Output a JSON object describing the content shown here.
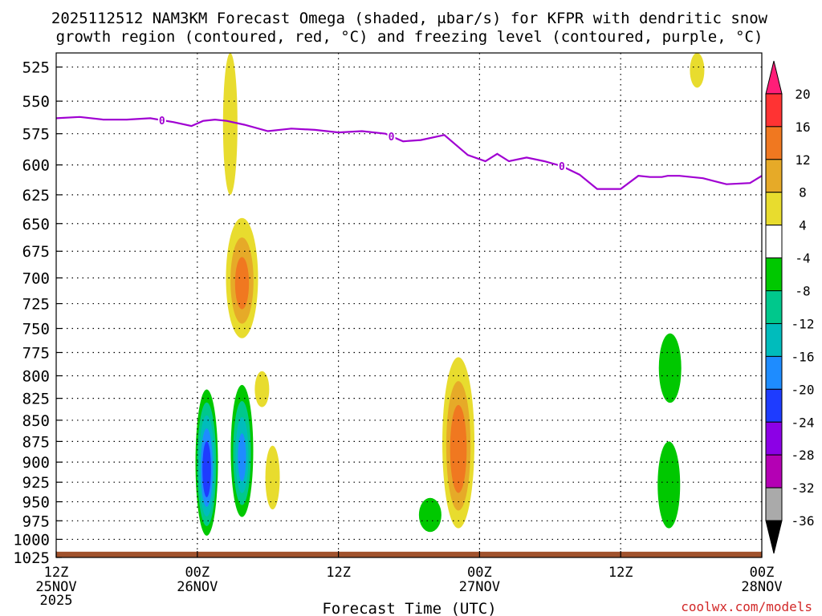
{
  "chart_data": {
    "type": "heatmap",
    "title_line1": "2025112512 NAM3KM Forecast Omega (shaded, μbar/s) for KFPR with dendritic snow",
    "title_line2": "growth region (contoured, red, °C) and freezing level (contoured, purple, °C)",
    "xlabel": "Forecast Time (UTC)",
    "watermark": "coolwx.com/models",
    "x_unit": "forecast hours from 2025112512",
    "x_range": [
      0,
      60
    ],
    "y_unit": "hPa",
    "y_range": [
      515,
      1025
    ],
    "y_ticks": [
      525,
      550,
      575,
      600,
      625,
      650,
      675,
      700,
      725,
      750,
      775,
      800,
      825,
      850,
      875,
      900,
      925,
      950,
      975,
      1000,
      1025
    ],
    "x_ticks": [
      {
        "hour": 0,
        "time": "12Z",
        "date": "25NOV",
        "year": "2025"
      },
      {
        "hour": 12,
        "time": "00Z",
        "date": "26NOV",
        "year": ""
      },
      {
        "hour": 24,
        "time": "12Z",
        "date": "",
        "year": ""
      },
      {
        "hour": 36,
        "time": "00Z",
        "date": "27NOV",
        "year": ""
      },
      {
        "hour": 48,
        "time": "12Z",
        "date": "",
        "year": ""
      },
      {
        "hour": 60,
        "time": "00Z",
        "date": "28NOV",
        "year": ""
      }
    ],
    "colorbar": {
      "levels": [
        "20",
        "16",
        "12",
        "8",
        "4",
        "-4",
        "-8",
        "-12",
        "-16",
        "-20",
        "-24",
        "-28",
        "-32",
        "-36"
      ],
      "colors": [
        "#ff1e78",
        "#ff3333",
        "#f07820",
        "#e6aa28",
        "#e8dc2e",
        "#ffffff",
        "#00c800",
        "#00c88c",
        "#00bcbc",
        "#1e8cff",
        "#1e3cff",
        "#8c00e6",
        "#b400b4",
        "#aaaaaa",
        "#000000"
      ]
    },
    "freezing_level": {
      "label": "0",
      "color": "#a000d2",
      "hours": [
        0,
        2,
        4,
        6,
        8,
        10,
        11.5,
        12.5,
        13.5,
        14.5,
        16,
        18,
        20,
        22,
        24,
        26,
        28,
        29.5,
        31,
        33,
        35,
        36.5,
        37.5,
        38.5,
        40,
        41.5,
        43,
        44.5,
        46,
        48,
        49.5,
        50.5,
        51.5,
        52,
        53,
        55,
        57,
        59,
        60
      ],
      "pressure_hpa": [
        563,
        562,
        564,
        564,
        563,
        566,
        569,
        565,
        564,
        565,
        568,
        573,
        571,
        572,
        574,
        573,
        575,
        581,
        580,
        576,
        592,
        597,
        591,
        597,
        594,
        597,
        601,
        608,
        620,
        620,
        609,
        610,
        610,
        609,
        609,
        611,
        616,
        615,
        609
      ]
    },
    "omega_regions": [
      {
        "name": "upward-core-26nov-00z",
        "hour": 12.8,
        "top_hpa": 815,
        "bottom_hpa": 995,
        "omega_min": -22
      },
      {
        "name": "upward-band-26nov-03z",
        "hour": 15.8,
        "top_hpa": 810,
        "bottom_hpa": 970,
        "omega_min": -16
      },
      {
        "name": "upward-small-27nov-00z",
        "hour": 31.8,
        "top_hpa": 945,
        "bottom_hpa": 990,
        "omega_min": -6
      },
      {
        "name": "upward-27nov-16z",
        "hour": 52.2,
        "top_hpa": 755,
        "bottom_hpa": 830,
        "omega_min": -6
      },
      {
        "name": "upward-27nov-16z-low",
        "hour": 52.1,
        "top_hpa": 875,
        "bottom_hpa": 985,
        "omega_min": -6
      },
      {
        "name": "downward-26nov-03z",
        "hour": 15.8,
        "top_hpa": 645,
        "bottom_hpa": 760,
        "omega_max": 12
      },
      {
        "name": "downward-26nov-02z-upper",
        "hour": 14.8,
        "top_hpa": 515,
        "bottom_hpa": 625,
        "omega_max": 6
      },
      {
        "name": "downward-27nov-02z",
        "hour": 34.2,
        "top_hpa": 780,
        "bottom_hpa": 985,
        "omega_max": 14
      },
      {
        "name": "downward-26nov-06z",
        "hour": 18.4,
        "top_hpa": 880,
        "bottom_hpa": 960,
        "omega_max": 6
      },
      {
        "name": "downward-26nov-05z",
        "hour": 17.5,
        "top_hpa": 795,
        "bottom_hpa": 835,
        "omega_max": 5
      },
      {
        "name": "downward-27nov-18z",
        "hour": 54.5,
        "top_hpa": 515,
        "bottom_hpa": 540,
        "omega_max": 5
      }
    ],
    "terrain": {
      "color": "#a0522d",
      "surface_hpa": 1017
    }
  }
}
